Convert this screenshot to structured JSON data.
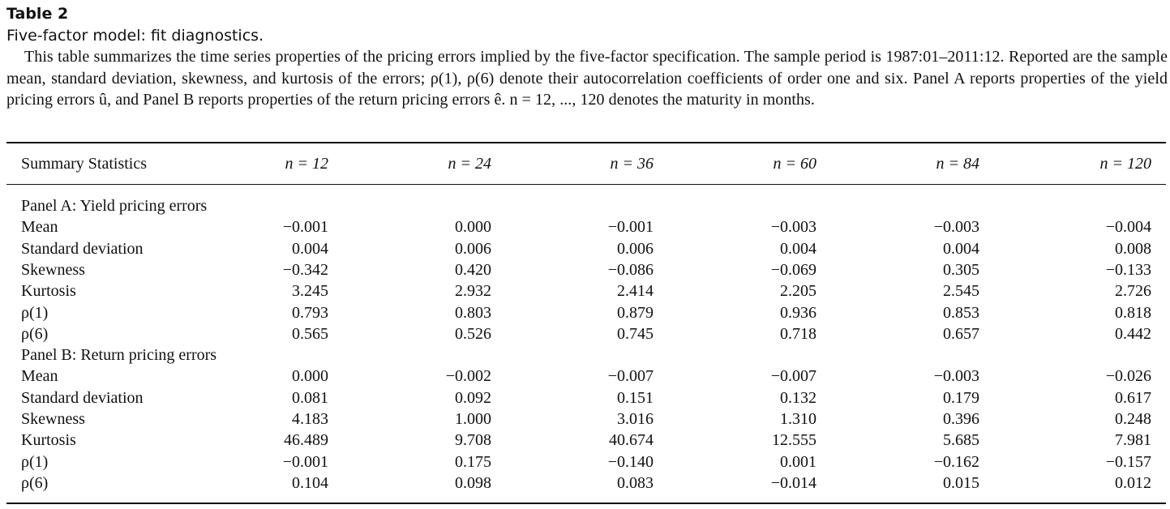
{
  "caption": {
    "label": "Table 2",
    "subtitle": "Five-factor model: fit diagnostics.",
    "description": "This table summarizes the time series properties of the pricing errors implied by the five-factor specification. The sample period is 1987:01–2011:12. Reported are the sample mean, standard deviation, skewness, and kurtosis of the errors; ρ(1), ρ(6) denote their autocorrelation coefficients of order one and six. Panel A reports properties of the yield pricing errors û, and Panel B reports properties of the return pricing errors ê. n = 12, ..., 120 denotes the maturity in months."
  },
  "table": {
    "header": {
      "label": "Summary Statistics",
      "columns": [
        "n = 12",
        "n = 24",
        "n = 36",
        "n = 60",
        "n = 84",
        "n = 120"
      ]
    },
    "panels": [
      {
        "title": "Panel A: Yield pricing errors",
        "rows": [
          {
            "label": "Mean",
            "values": [
              "−0.001",
              "0.000",
              "−0.001",
              "−0.003",
              "−0.003",
              "−0.004"
            ]
          },
          {
            "label": "Standard deviation",
            "values": [
              "0.004",
              "0.006",
              "0.006",
              "0.004",
              "0.004",
              "0.008"
            ]
          },
          {
            "label": "Skewness",
            "values": [
              "−0.342",
              "0.420",
              "−0.086",
              "−0.069",
              "0.305",
              "−0.133"
            ]
          },
          {
            "label": "Kurtosis",
            "values": [
              "3.245",
              "2.932",
              "2.414",
              "2.205",
              "2.545",
              "2.726"
            ]
          },
          {
            "label": "ρ(1)",
            "values": [
              "0.793",
              "0.803",
              "0.879",
              "0.936",
              "0.853",
              "0.818"
            ]
          },
          {
            "label": "ρ(6)",
            "values": [
              "0.565",
              "0.526",
              "0.745",
              "0.718",
              "0.657",
              "0.442"
            ]
          }
        ]
      },
      {
        "title": "Panel B: Return pricing errors",
        "rows": [
          {
            "label": "Mean",
            "values": [
              "0.000",
              "−0.002",
              "−0.007",
              "−0.007",
              "−0.003",
              "−0.026"
            ]
          },
          {
            "label": "Standard deviation",
            "values": [
              "0.081",
              "0.092",
              "0.151",
              "0.132",
              "0.179",
              "0.617"
            ]
          },
          {
            "label": "Skewness",
            "values": [
              "4.183",
              "1.000",
              "3.016",
              "1.310",
              "0.396",
              "0.248"
            ]
          },
          {
            "label": "Kurtosis",
            "values": [
              "46.489",
              "9.708",
              "40.674",
              "12.555",
              "5.685",
              "7.981"
            ]
          },
          {
            "label": "ρ(1)",
            "values": [
              "−0.001",
              "0.175",
              "−0.140",
              "0.001",
              "−0.162",
              "−0.157"
            ]
          },
          {
            "label": "ρ(6)",
            "values": [
              "0.104",
              "0.098",
              "0.083",
              "−0.014",
              "0.015",
              "0.012"
            ]
          }
        ]
      }
    ]
  }
}
